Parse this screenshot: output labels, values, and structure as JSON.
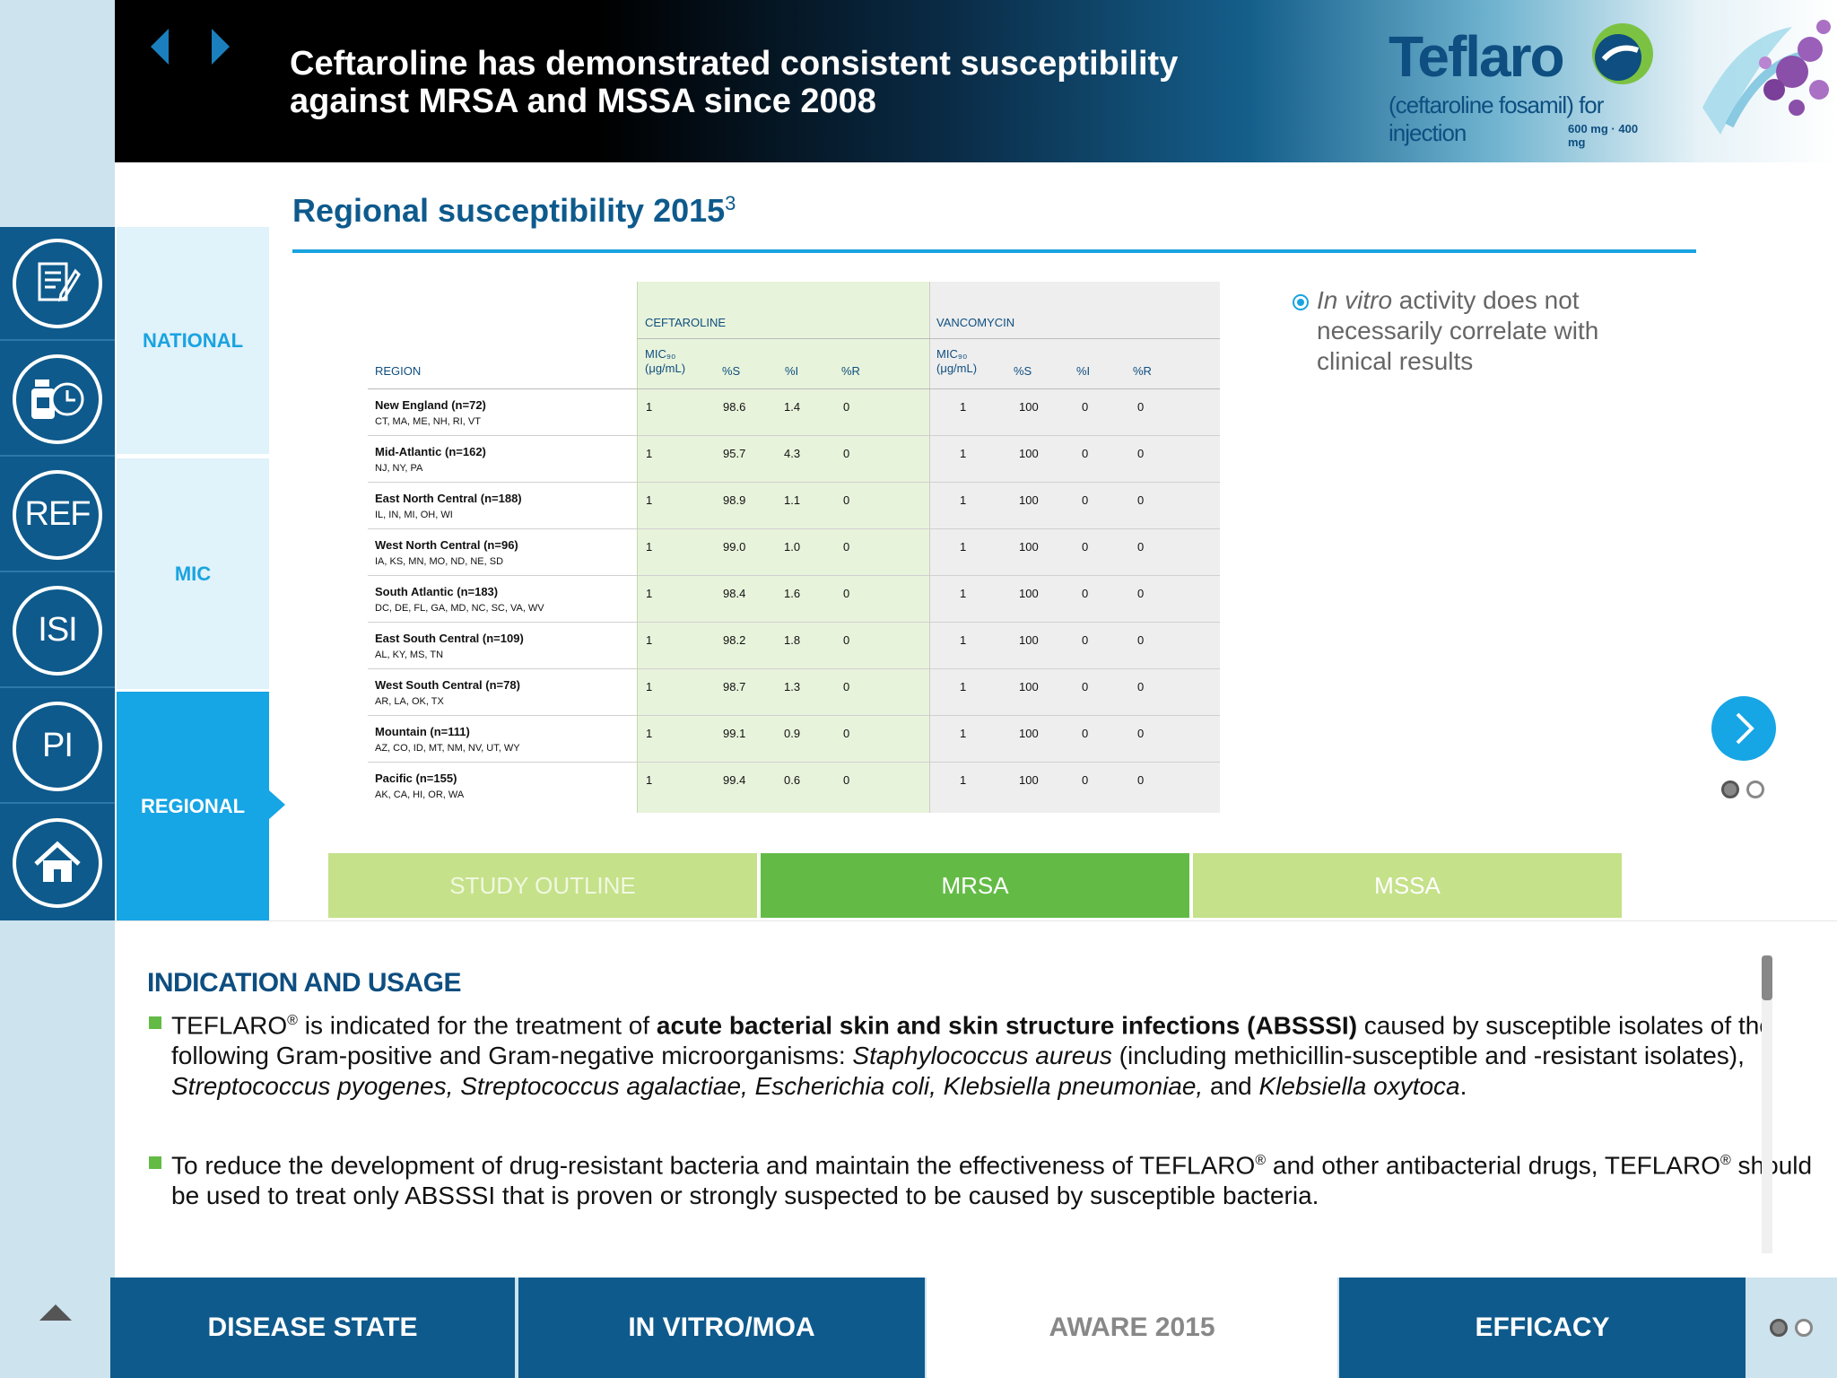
{
  "header": {
    "title_line1": "Ceftaroline has demonstrated consistent susceptibility",
    "title_line2": "against MRSA and MSSA since 2008",
    "brand_name": "Teflaro",
    "brand_subtitle": "(ceftaroline fosamil) for injection",
    "brand_dose": "600 mg · 400 mg"
  },
  "rail": {
    "items": [
      {
        "name": "notes-icon"
      },
      {
        "name": "dosing-clock-icon"
      },
      {
        "name": "ref",
        "label": "REF"
      },
      {
        "name": "isi",
        "label": "ISI"
      },
      {
        "name": "pi",
        "label": "PI"
      },
      {
        "name": "home-icon"
      }
    ]
  },
  "side_tabs": {
    "national": "NATIONAL",
    "mic": "MIC",
    "regional": "REGIONAL",
    "active": "REGIONAL"
  },
  "main": {
    "title": "Regional susceptibility 2015",
    "title_ref": "3"
  },
  "table": {
    "group_ceftaroline": "CEFTAROLINE",
    "group_vancomycin": "VANCOMYCIN",
    "col_region": "REGION",
    "col_mic_line1": "MIC₉₀",
    "col_mic_line2": "(μg/mL)",
    "col_s": "%S",
    "col_i": "%I",
    "col_r": "%R",
    "rows": [
      {
        "region": "New England (n=72)",
        "states": "CT, MA, ME, NH, RI, VT",
        "c_mic": "1",
        "c_s": "98.6",
        "c_i": "1.4",
        "c_r": "0",
        "v_mic": "1",
        "v_s": "100",
        "v_i": "0",
        "v_r": "0"
      },
      {
        "region": "Mid-Atlantic (n=162)",
        "states": "NJ, NY, PA",
        "c_mic": "1",
        "c_s": "95.7",
        "c_i": "4.3",
        "c_r": "0",
        "v_mic": "1",
        "v_s": "100",
        "v_i": "0",
        "v_r": "0"
      },
      {
        "region": "East North Central (n=188)",
        "states": "IL, IN, MI, OH, WI",
        "c_mic": "1",
        "c_s": "98.9",
        "c_i": "1.1",
        "c_r": "0",
        "v_mic": "1",
        "v_s": "100",
        "v_i": "0",
        "v_r": "0"
      },
      {
        "region": "West North Central (n=96)",
        "states": "IA, KS, MN, MO, ND, NE, SD",
        "c_mic": "1",
        "c_s": "99.0",
        "c_i": "1.0",
        "c_r": "0",
        "v_mic": "1",
        "v_s": "100",
        "v_i": "0",
        "v_r": "0"
      },
      {
        "region": "South Atlantic (n=183)",
        "states": "DC, DE, FL, GA, MD, NC, SC, VA, WV",
        "c_mic": "1",
        "c_s": "98.4",
        "c_i": "1.6",
        "c_r": "0",
        "v_mic": "1",
        "v_s": "100",
        "v_i": "0",
        "v_r": "0"
      },
      {
        "region": "East South Central (n=109)",
        "states": "AL, KY, MS, TN",
        "c_mic": "1",
        "c_s": "98.2",
        "c_i": "1.8",
        "c_r": "0",
        "v_mic": "1",
        "v_s": "100",
        "v_i": "0",
        "v_r": "0"
      },
      {
        "region": "West South Central (n=78)",
        "states": "AR, LA, OK, TX",
        "c_mic": "1",
        "c_s": "98.7",
        "c_i": "1.3",
        "c_r": "0",
        "v_mic": "1",
        "v_s": "100",
        "v_i": "0",
        "v_r": "0"
      },
      {
        "region": "Mountain (n=111)",
        "states": "AZ, CO, ID, MT, NM, NV, UT, WY",
        "c_mic": "1",
        "c_s": "99.1",
        "c_i": "0.9",
        "c_r": "0",
        "v_mic": "1",
        "v_s": "100",
        "v_i": "0",
        "v_r": "0"
      },
      {
        "region": "Pacific (n=155)",
        "states": "AK, CA, HI, OR, WA",
        "c_mic": "1",
        "c_s": "99.4",
        "c_i": "0.6",
        "c_r": "0",
        "v_mic": "1",
        "v_s": "100",
        "v_i": "0",
        "v_r": "0"
      }
    ]
  },
  "note": {
    "italic": "In vitro",
    "rest": " activity does not necessarily correlate with clinical results"
  },
  "pager": {
    "current": 1,
    "total": 2
  },
  "segments": {
    "study_outline": "STUDY OUTLINE",
    "mrsa": "MRSA",
    "mssa": "MSSA",
    "active": "MRSA"
  },
  "isi": {
    "heading": "INDICATION AND USAGE",
    "bullet1_html": "TEFLARO<sup>®</sup> is indicated for the treatment of <b>acute bacterial skin and skin structure infections (ABSSSI)</b> caused by susceptible isolates of the following Gram-positive and Gram-negative microorganisms: <i>Staphylococcus aureus</i> (including methicillin-susceptible and -resistant isolates), <i>Streptococcus pyogenes, Streptococcus agalactiae, Escherichia coli, Klebsiella pneumoniae,</i> and <i>Klebsiella oxytoca</i>.",
    "bullet2_html": "To reduce the development of drug-resistant bacteria and maintain the effectiveness of TEFLARO<sup>®</sup> and other antibacterial drugs, TEFLARO<sup>®</sup> should be used to treat only ABSSSI that is proven or strongly suspected to be caused by susceptible bacteria."
  },
  "bottom_nav": {
    "items": [
      "DISEASE STATE",
      "IN VITRO/MOA",
      "AWARE 2015",
      "EFFICACY"
    ],
    "active": "AWARE 2015",
    "pager_current": 1,
    "pager_total": 2
  },
  "colors": {
    "brand_blue": "#0e5a8c",
    "accent_cyan": "#16a5e5",
    "green_active": "#63bb46",
    "green_light": "#c5e18a"
  }
}
